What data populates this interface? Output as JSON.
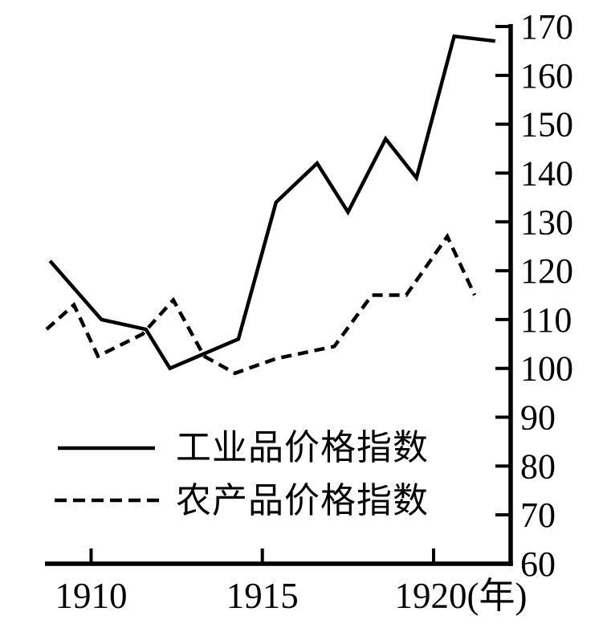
{
  "colors": {
    "line": "#000000",
    "background": "#ffffff",
    "text": "#000000"
  },
  "chart_data": {
    "type": "line",
    "title": "",
    "grid": false,
    "x_axis": {
      "range": [
        1908.7,
        1922.25
      ],
      "unit": "年",
      "ticks": [
        {
          "value": 1910,
          "label": "1910"
        },
        {
          "value": 1915,
          "label": "1915"
        },
        {
          "value": 1920,
          "label": "1920(年)"
        }
      ]
    },
    "y_axis": {
      "range": [
        60,
        170
      ],
      "ticks": [
        {
          "value": 170,
          "label": "170"
        },
        {
          "value": 160,
          "label": "160"
        },
        {
          "value": 150,
          "label": "150"
        },
        {
          "value": 140,
          "label": "140"
        },
        {
          "value": 130,
          "label": "130"
        },
        {
          "value": 120,
          "label": "120"
        },
        {
          "value": 110,
          "label": "110"
        },
        {
          "value": 100,
          "label": "100"
        },
        {
          "value": 90,
          "label": "90"
        },
        {
          "value": 80,
          "label": "80"
        },
        {
          "value": 70,
          "label": "70"
        },
        {
          "value": 60,
          "label": "60"
        }
      ]
    },
    "legend": {
      "position": "inside-bottom-left",
      "items": [
        {
          "label": "工业品价格指数",
          "series": "industrial",
          "style": "solid"
        },
        {
          "label": "农产品价格指数",
          "series": "agricultural",
          "style": "dashed"
        }
      ]
    },
    "series": [
      {
        "name": "工业品价格指数",
        "id": "industrial",
        "style": "solid",
        "color": "#000000",
        "x": [
          1908.8,
          1910.3,
          1911.6,
          1912.3,
          1914.3,
          1915.4,
          1916.6,
          1917.5,
          1918.6,
          1919.5,
          1920.6,
          1921.8
        ],
        "values": [
          122,
          110,
          108,
          100,
          106,
          134,
          142,
          132,
          147,
          139,
          168,
          167
        ]
      },
      {
        "name": "农产品价格指数",
        "id": "agricultural",
        "style": "dashed",
        "color": "#000000",
        "x": [
          1908.7,
          1909.5,
          1910.2,
          1911.5,
          1912.4,
          1913.3,
          1914.2,
          1915.4,
          1917.1,
          1918.2,
          1919.2,
          1920.4,
          1921.2
        ],
        "values": [
          108,
          113,
          102.5,
          107,
          114,
          102.5,
          99,
          102,
          104.5,
          115,
          115,
          127,
          115
        ]
      }
    ]
  }
}
